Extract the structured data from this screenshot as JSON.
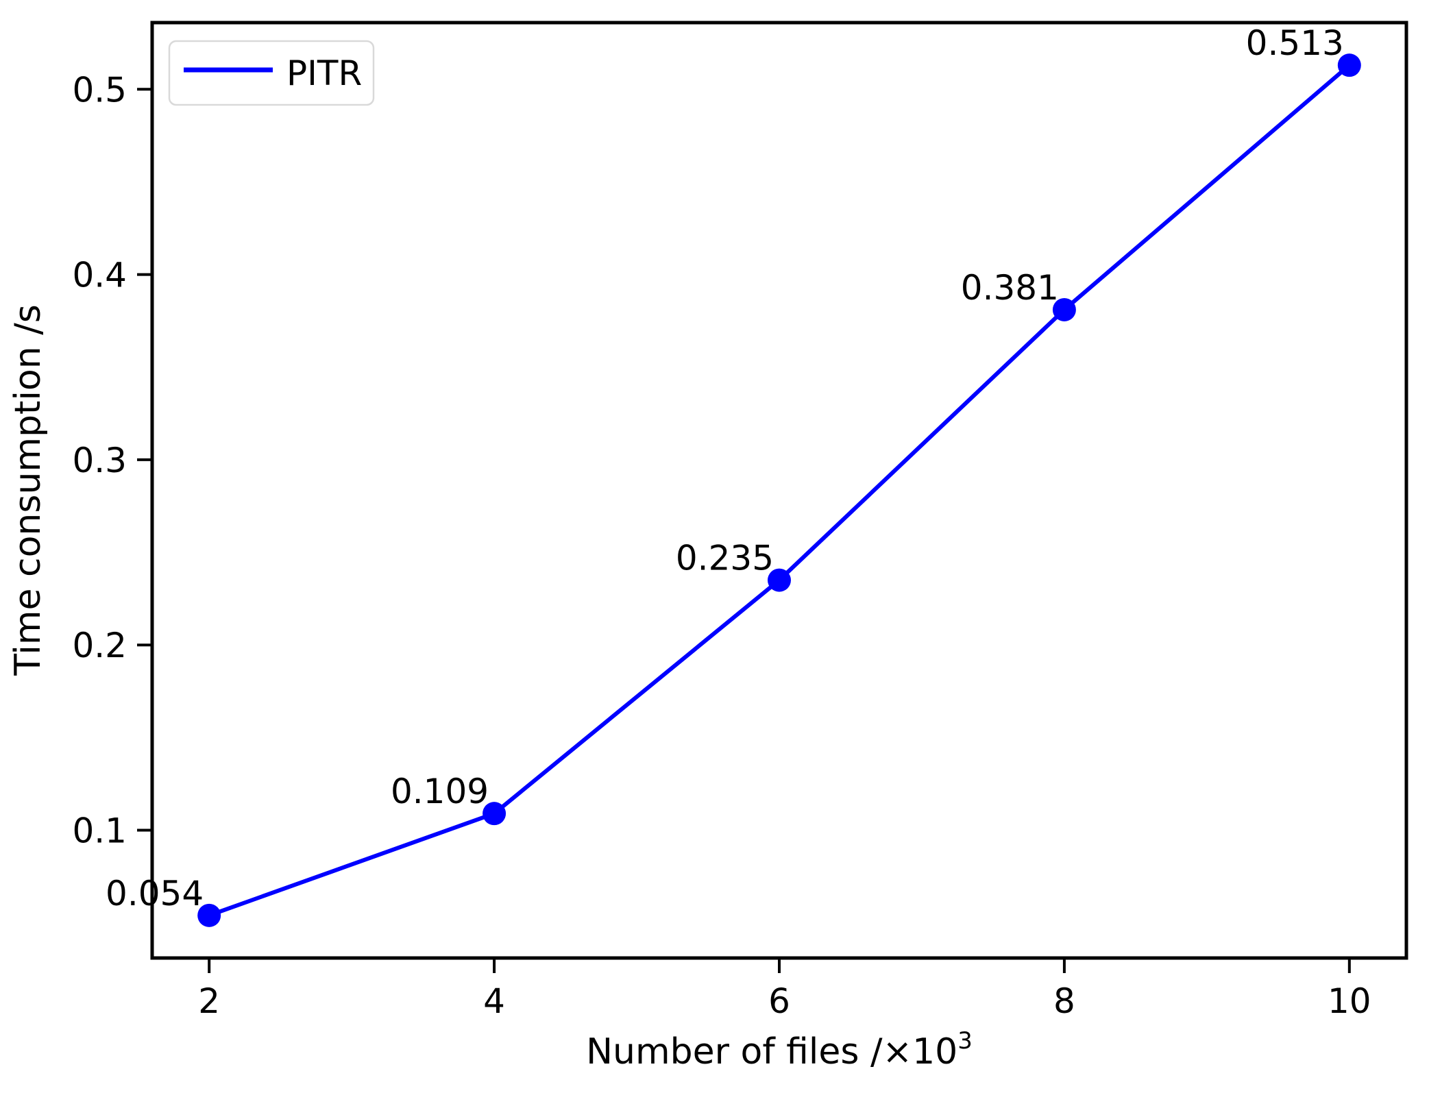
{
  "figure": {
    "background": "#ffffff"
  },
  "legend": {
    "position": "upper-left",
    "items": [
      {
        "label": "PITR",
        "color": "#0000ff"
      }
    ]
  },
  "chart_data": {
    "type": "line",
    "title": "",
    "xlabel": {
      "text": "Number of files /×10",
      "superscript": "3"
    },
    "ylabel": "Time consumption /s",
    "x": [
      2,
      4,
      6,
      8,
      10
    ],
    "series": [
      {
        "name": "PITR",
        "color": "#0000ff",
        "marker": "circle",
        "values": [
          0.054,
          0.109,
          0.235,
          0.381,
          0.513
        ]
      }
    ],
    "point_labels": [
      "0.054",
      "0.109",
      "0.235",
      "0.381",
      "0.513"
    ],
    "xticks": [
      2,
      4,
      6,
      8,
      10
    ],
    "xtick_labels": [
      "2",
      "4",
      "6",
      "8",
      "10"
    ],
    "yticks": [
      0.1,
      0.2,
      0.3,
      0.4,
      0.5
    ],
    "ytick_labels": [
      "0.1",
      "0.2",
      "0.3",
      "0.4",
      "0.5"
    ],
    "xlim": [
      1.6,
      10.4
    ],
    "ylim": [
      0.031,
      0.536
    ],
    "grid": false,
    "legend_position": "upper-left"
  }
}
